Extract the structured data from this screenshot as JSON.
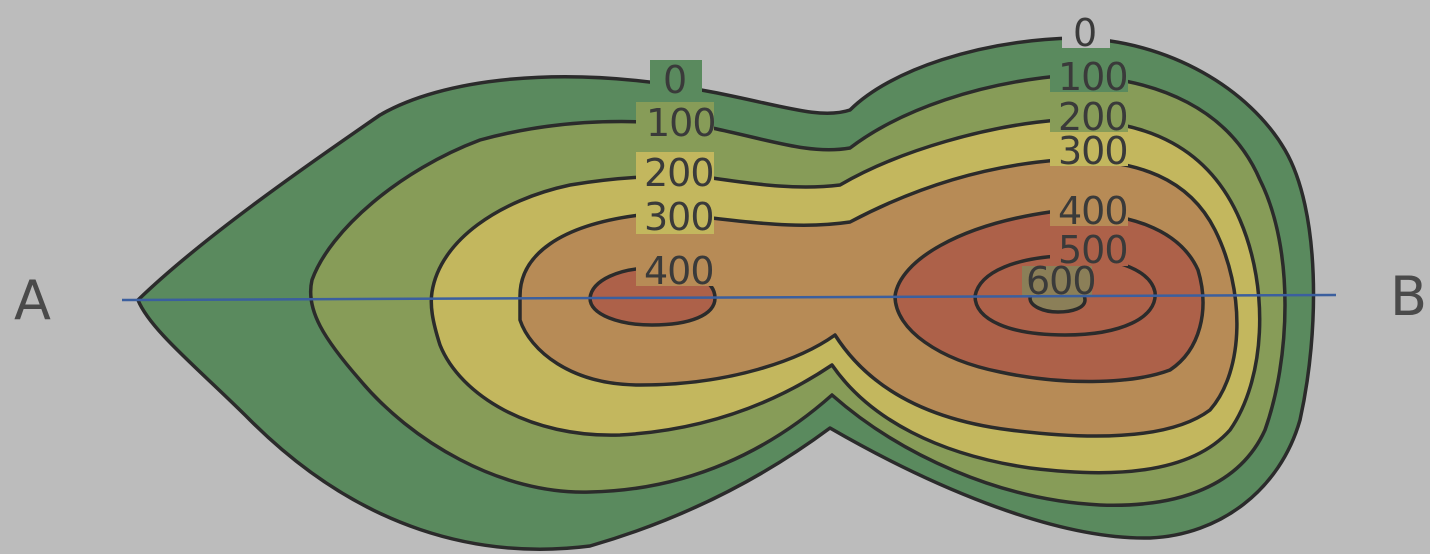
{
  "profile_line": {
    "start_label": "A",
    "end_label": "B",
    "color": "#3b5f9e"
  },
  "contours": [
    {
      "elevation": "0",
      "fill": "#5a8a5e"
    },
    {
      "elevation": "100",
      "fill": "#879c58"
    },
    {
      "elevation": "200",
      "fill": "#c3b75e"
    },
    {
      "elevation": "300",
      "fill": "#b78b56"
    },
    {
      "elevation": "400",
      "fill": "#ad6149"
    },
    {
      "elevation": "500",
      "fill": "#ad6149"
    },
    {
      "elevation": "600",
      "fill": "#8b7f58"
    }
  ],
  "labels": {
    "west_peak": [
      "0",
      "100",
      "200",
      "300",
      "400"
    ],
    "east_peak": [
      "0",
      "100",
      "200",
      "300",
      "400",
      "500",
      "600"
    ]
  },
  "colors": {
    "background": "#bcbcbc",
    "contour_line": "#2b2b2b",
    "peak_core": "#ad6149"
  }
}
